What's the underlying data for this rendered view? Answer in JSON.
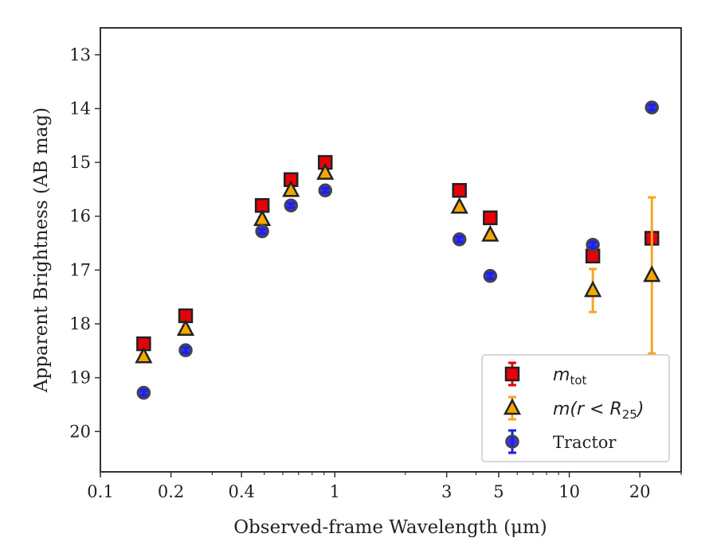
{
  "chart_data": {
    "type": "scatter",
    "title": "",
    "xlabel": "Observed-frame Wavelength (μm)",
    "ylabel": "Apparent Brightness (AB mag)",
    "xscale": "log",
    "xlim": [
      0.1,
      30
    ],
    "ylim": [
      20.75,
      12.5
    ],
    "y_inverted": true,
    "xticks": [
      0.1,
      0.2,
      0.4,
      1,
      3,
      5,
      10,
      20
    ],
    "xtick_labels": [
      "0.1",
      "0.2",
      "0.4",
      "1",
      "3",
      "5",
      "10",
      "20"
    ],
    "yticks": [
      13,
      14,
      15,
      16,
      17,
      18,
      19,
      20
    ],
    "ytick_labels": [
      "13",
      "14",
      "15",
      "16",
      "17",
      "18",
      "19",
      "20"
    ],
    "grid": false,
    "legend_position": "lower-right",
    "series": [
      {
        "name": "m_tot",
        "legend_label": "m",
        "legend_sub": "tot",
        "marker": "square",
        "color": "#e8000b",
        "error_color": "#e8000b",
        "points": [
          {
            "x": 0.153,
            "y": 18.37,
            "err": 0.05
          },
          {
            "x": 0.231,
            "y": 17.85,
            "err": 0.05
          },
          {
            "x": 0.49,
            "y": 15.8,
            "err": 0.04
          },
          {
            "x": 0.65,
            "y": 15.32,
            "err": 0.04
          },
          {
            "x": 0.91,
            "y": 15.0,
            "err": 0.04
          },
          {
            "x": 3.4,
            "y": 15.52,
            "err": 0.04
          },
          {
            "x": 4.6,
            "y": 16.03,
            "err": 0.05
          },
          {
            "x": 12.6,
            "y": 16.74,
            "err": 0.05
          },
          {
            "x": 22.5,
            "y": 16.41,
            "err": 0.05
          }
        ]
      },
      {
        "name": "m(r < R25)",
        "legend_label": "m(r < R",
        "legend_sub": "25",
        "legend_tail": ")",
        "marker": "triangle",
        "color": "#f5a700",
        "error_color": "#f5a623",
        "points": [
          {
            "x": 0.153,
            "y": 18.61,
            "err": 0.05
          },
          {
            "x": 0.231,
            "y": 18.1,
            "err": 0.05
          },
          {
            "x": 0.49,
            "y": 16.06,
            "err": 0.04
          },
          {
            "x": 0.65,
            "y": 15.52,
            "err": 0.04
          },
          {
            "x": 0.91,
            "y": 15.2,
            "err": 0.04
          },
          {
            "x": 3.4,
            "y": 15.83,
            "err": 0.04
          },
          {
            "x": 4.6,
            "y": 16.35,
            "err": 0.05
          },
          {
            "x": 12.6,
            "y": 17.38,
            "err": 0.4
          },
          {
            "x": 22.5,
            "y": 17.1,
            "err": 1.45
          }
        ]
      },
      {
        "name": "Tractor",
        "legend_label": "Tractor",
        "marker": "circle",
        "color": "#1f1fdd",
        "error_color": "#1f1fdd",
        "points": [
          {
            "x": 0.153,
            "y": 19.28,
            "err": 0.05
          },
          {
            "x": 0.231,
            "y": 18.49,
            "err": 0.05
          },
          {
            "x": 0.49,
            "y": 16.28,
            "err": 0.04
          },
          {
            "x": 0.65,
            "y": 15.8,
            "err": 0.04
          },
          {
            "x": 0.91,
            "y": 15.52,
            "err": 0.04
          },
          {
            "x": 3.4,
            "y": 16.43,
            "err": 0.05
          },
          {
            "x": 4.6,
            "y": 17.11,
            "err": 0.05
          },
          {
            "x": 12.6,
            "y": 16.53,
            "err": 0.05
          },
          {
            "x": 22.5,
            "y": 13.98,
            "err": 0.05
          }
        ]
      }
    ]
  }
}
